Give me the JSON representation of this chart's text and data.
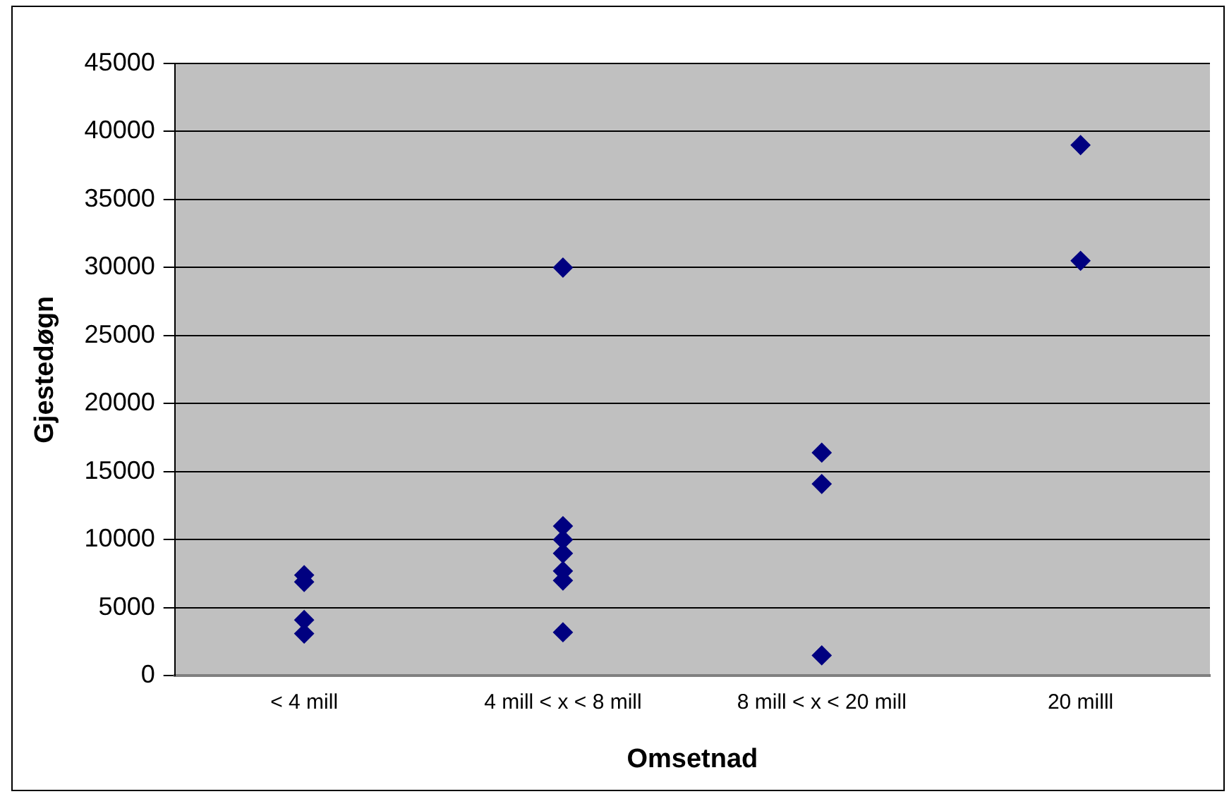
{
  "chart_data": {
    "type": "scatter",
    "xlabel": "Omsetnad",
    "ylabel": "Gjestedøgn",
    "categories": [
      "< 4 mill",
      "4 mill < x < 8 mill",
      "8 mill < x < 20 mill",
      "20 milll"
    ],
    "series": [
      {
        "color": "#000080",
        "x": [
          "< 4 mill",
          "< 4 mill",
          "< 4 mill",
          "< 4 mill",
          "4 mill < x < 8 mill",
          "4 mill < x < 8 mill",
          "4 mill < x < 8 mill",
          "4 mill < x < 8 mill",
          "4 mill < x < 8 mill",
          "4 mill < x < 8 mill",
          "4 mill < x < 8 mill",
          "8 mill < x < 20 mill",
          "8 mill < x < 20 mill",
          "8 mill < x < 20 mill",
          "20 milll",
          "20 milll"
        ],
        "values": [
          7400,
          6900,
          4100,
          3100,
          30000,
          11000,
          10000,
          9000,
          7700,
          7000,
          3200,
          16400,
          14100,
          1500,
          39000,
          30500
        ]
      }
    ],
    "ylim": [
      0,
      45000
    ],
    "yticks": [
      0,
      5000,
      10000,
      15000,
      20000,
      25000,
      30000,
      35000,
      40000,
      45000
    ],
    "grid": "y",
    "legend": false,
    "marker": "diamond"
  }
}
